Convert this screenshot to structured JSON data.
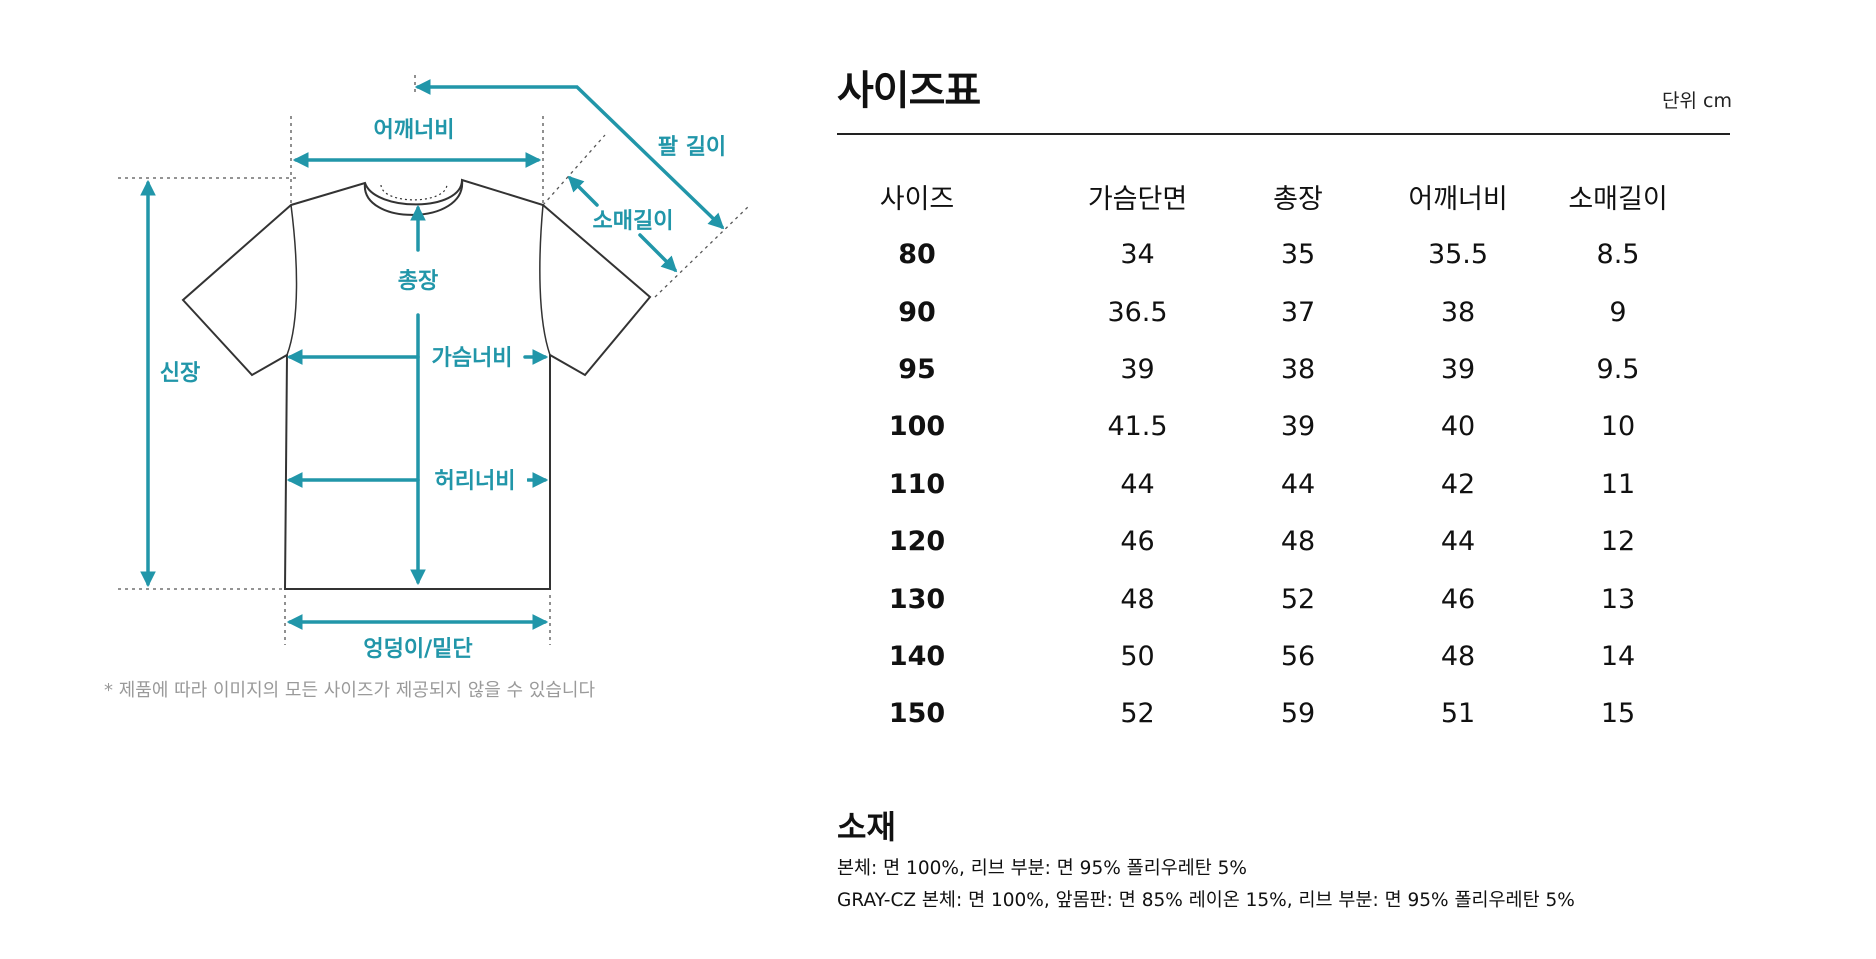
{
  "diagram": {
    "labels": {
      "shoulder": "어깨너비",
      "arm_length": "팔 길이",
      "sleeve_length": "소매길이",
      "total_length": "총장",
      "height": "신장",
      "chest": "가슴너비",
      "waist": "허리너비",
      "hem": "엉덩이/밑단"
    },
    "note": "* 제품에 따라 이미지의 모든 사이즈가 제공되지 않을 수 있습니다",
    "accent_color": "#2196a9"
  },
  "size_table": {
    "title": "사이즈표",
    "unit": "단위 cm",
    "headers": [
      "사이즈",
      "가슴단면",
      "총장",
      "어깨너비",
      "소매길이"
    ],
    "rows": [
      [
        "80",
        "34",
        "35",
        "35.5",
        "8.5"
      ],
      [
        "90",
        "36.5",
        "37",
        "38",
        "9"
      ],
      [
        "95",
        "39",
        "38",
        "39",
        "9.5"
      ],
      [
        "100",
        "41.5",
        "39",
        "40",
        "10"
      ],
      [
        "110",
        "44",
        "44",
        "42",
        "11"
      ],
      [
        "120",
        "46",
        "48",
        "44",
        "12"
      ],
      [
        "130",
        "48",
        "52",
        "46",
        "13"
      ],
      [
        "140",
        "50",
        "56",
        "48",
        "14"
      ],
      [
        "150",
        "52",
        "59",
        "51",
        "15"
      ]
    ]
  },
  "material": {
    "title": "소재",
    "line1": "본체: 면 100%, 리브 부분: 면 95% 폴리우레탄 5%",
    "line2": "GRAY-CZ 본체: 면 100%, 앞몸판: 면 85% 레이온 15%, 리브 부분: 면 95% 폴리우레탄 5%"
  }
}
